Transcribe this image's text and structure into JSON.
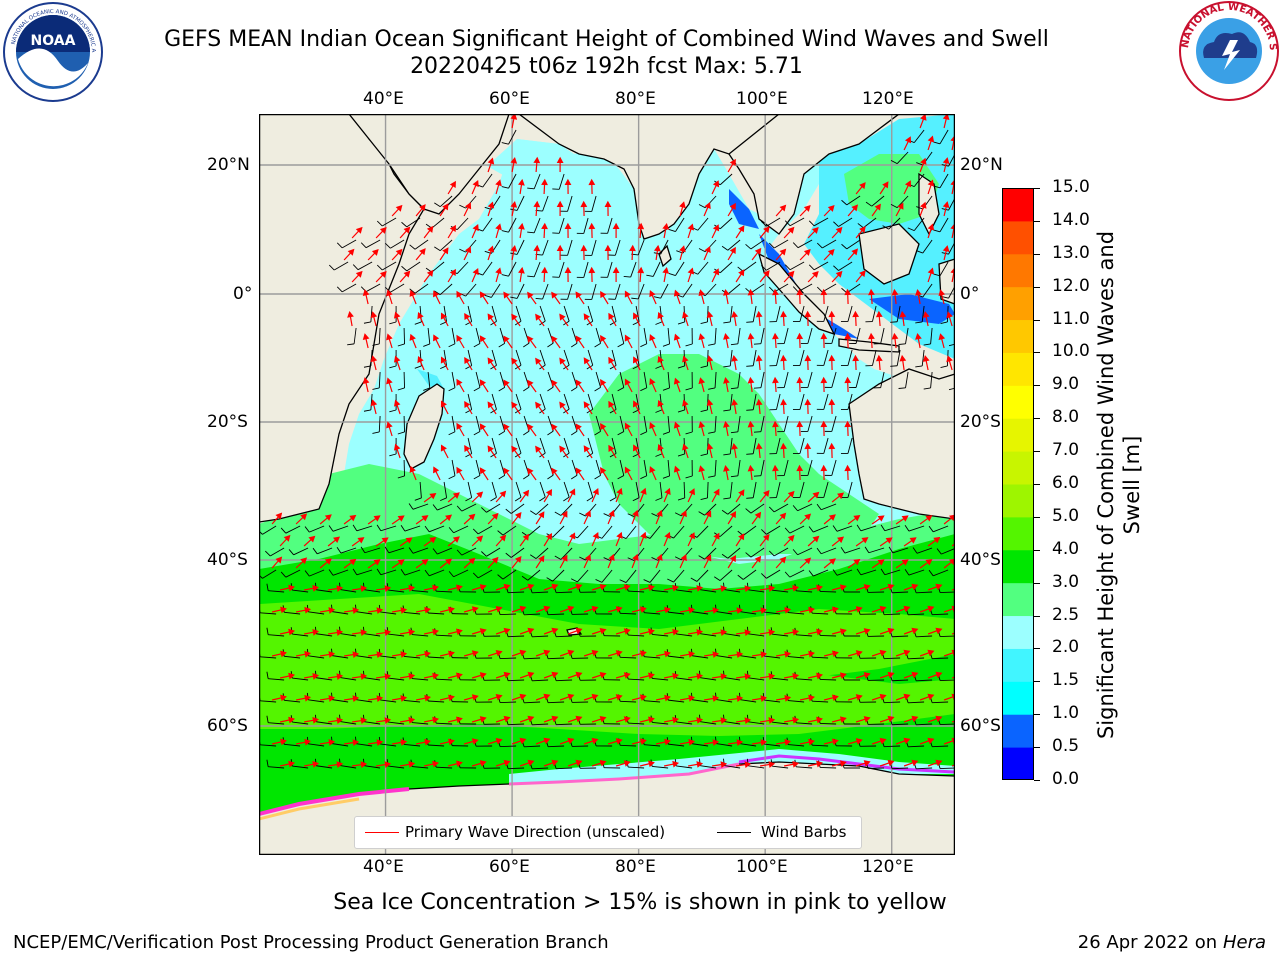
{
  "title": {
    "line1": "GEFS MEAN Indian Ocean Significant Height of Combined Wind Waves and Swell",
    "line2": "20220425 t06z 192h fcst   Max: 5.71"
  },
  "logos": {
    "left": {
      "name": "noaa-logo",
      "text": "NOAA"
    },
    "right": {
      "name": "nws-logo",
      "text": "NATIONAL WEATHER SERVICE"
    }
  },
  "map": {
    "lon_range": [
      20,
      130
    ],
    "lat_range": [
      -73,
      28
    ],
    "top_lon_labels": [
      "40°E",
      "60°E",
      "80°E",
      "100°E",
      "120°E"
    ],
    "bottom_lon_labels": [
      "40°E",
      "60°E",
      "80°E",
      "100°E",
      "120°E"
    ],
    "left_lat_labels": [
      "20°N",
      "0°",
      "20°S",
      "40°S",
      "60°S"
    ],
    "right_lat_labels": [
      "20°N",
      "0°",
      "20°S",
      "40°S",
      "60°S"
    ],
    "land_color": "#efede0",
    "gridlines": true
  },
  "colorbar": {
    "label": "Significant Height of Combined Wind Waves and Swell [m]",
    "ticks": [
      "0.0",
      "0.5",
      "1.0",
      "1.5",
      "2.0",
      "2.5",
      "3.0",
      "4.0",
      "5.0",
      "6.0",
      "7.0",
      "8.0",
      "9.0",
      "10.0",
      "11.0",
      "12.0",
      "13.0",
      "14.0",
      "15.0"
    ],
    "colors": [
      "#0000ff",
      "#0a64ff",
      "#00ffff",
      "#41f5ff",
      "#9cffff",
      "#52ff80",
      "#00e600",
      "#54f500",
      "#9ef500",
      "#c8f500",
      "#e6f500",
      "#ffff00",
      "#ffe600",
      "#ffc800",
      "#ffa000",
      "#ff7800",
      "#ff5000",
      "#ff0000"
    ]
  },
  "legend": {
    "items": [
      {
        "label": "Primary Wave Direction (unscaled)",
        "color": "#ff0000"
      },
      {
        "label": "Wind Barbs",
        "color": "#000000"
      }
    ]
  },
  "footnote": "Sea Ice Concentration > 15% is shown in pink to yellow",
  "credit": "NCEP/EMC/Verification Post Processing Product Generation Branch",
  "date": {
    "text": "26 Apr 2022 on ",
    "machine": "Hera"
  }
}
